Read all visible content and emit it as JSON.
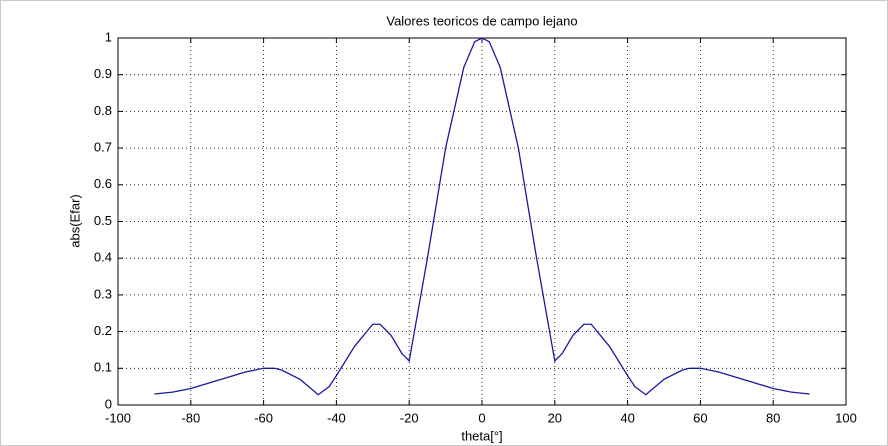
{
  "chart_data": {
    "type": "line",
    "title": "Valores teoricos de campo lejano",
    "xlabel": "theta[°]",
    "ylabel": "abs(Efar)",
    "xlim": [
      -100,
      100
    ],
    "xticks": [
      -100,
      -80,
      -60,
      -40,
      -20,
      0,
      20,
      40,
      60,
      80,
      100
    ],
    "ylim": [
      0,
      1
    ],
    "yticks": [
      0,
      0.1,
      0.2,
      0.3,
      0.4,
      0.5,
      0.6,
      0.7,
      0.8,
      0.9,
      1
    ],
    "grid": true,
    "series": [
      {
        "color": "#1a1a9c",
        "x": [
          -90,
          -85,
          -80,
          -75,
          -70,
          -65,
          -60,
          -57,
          -55,
          -50,
          -47,
          -45,
          -42,
          -40,
          -35,
          -30,
          -28,
          -25,
          -22,
          -20,
          -15,
          -10,
          -5,
          -2,
          0,
          2,
          5,
          10,
          15,
          20,
          22,
          25,
          28,
          30,
          35,
          40,
          42,
          45,
          47,
          50,
          55,
          57,
          60,
          65,
          70,
          75,
          80,
          85,
          90
        ],
        "values": [
          0.03,
          0.035,
          0.045,
          0.06,
          0.075,
          0.09,
          0.1,
          0.1,
          0.095,
          0.07,
          0.045,
          0.028,
          0.05,
          0.08,
          0.16,
          0.22,
          0.22,
          0.19,
          0.14,
          0.12,
          0.4,
          0.7,
          0.92,
          0.99,
          1.0,
          0.99,
          0.92,
          0.7,
          0.4,
          0.12,
          0.14,
          0.19,
          0.22,
          0.22,
          0.16,
          0.08,
          0.05,
          0.028,
          0.045,
          0.07,
          0.095,
          0.1,
          0.1,
          0.09,
          0.075,
          0.06,
          0.045,
          0.035,
          0.03
        ]
      }
    ]
  }
}
